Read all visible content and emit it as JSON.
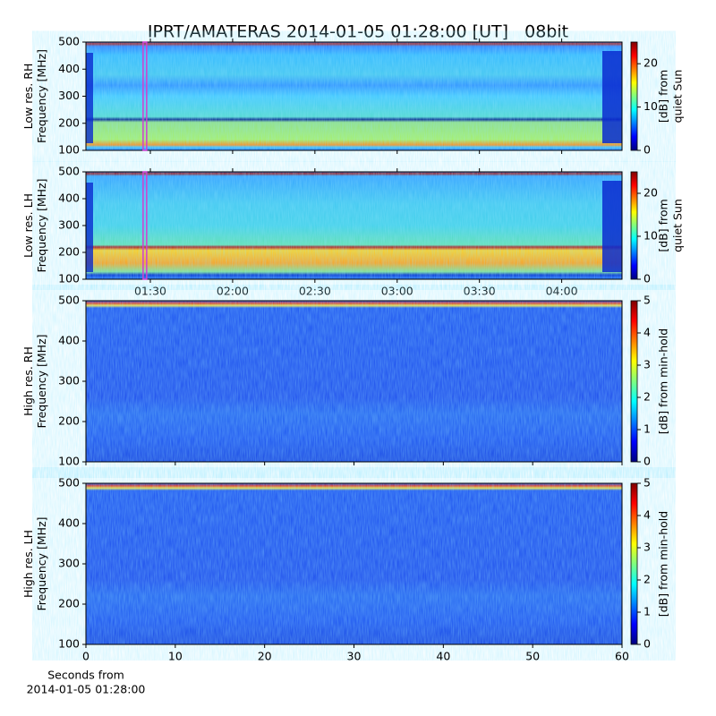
{
  "chart_data": [
    {
      "type": "spectrogram",
      "title": "IPRT/AMATERAS 2014-01-05 01:28:00 [UT]   08bit",
      "ylabel": [
        "Low res. RH",
        "Frequency [MHz]"
      ],
      "ylim": [
        100,
        500
      ],
      "yticks": [
        100,
        200,
        300,
        400,
        500
      ],
      "clim": [
        0,
        25
      ],
      "cticks": [
        0,
        10,
        20
      ],
      "clabel": [
        "[dB] from",
        "quiet Sun"
      ],
      "colormap": "jet",
      "marker": 88,
      "marker_color": "#d040d0"
    },
    {
      "type": "spectrogram",
      "ylabel": [
        "Low res. LH",
        "Frequency [MHz]"
      ],
      "ylim": [
        100,
        500
      ],
      "yticks": [
        100,
        200,
        300,
        400,
        500
      ],
      "xlim": [
        66.5,
        262
      ],
      "xticks": [
        {
          "value": 90,
          "label": "01:30"
        },
        {
          "value": 120,
          "label": "02:00"
        },
        {
          "value": 150,
          "label": "02:30"
        },
        {
          "value": 180,
          "label": "03:00"
        },
        {
          "value": 210,
          "label": "03:30"
        },
        {
          "value": 240,
          "label": "04:00"
        }
      ],
      "clim": [
        0,
        25
      ],
      "cticks": [
        0,
        10,
        20
      ],
      "clabel": [
        "[dB] from",
        "quiet Sun"
      ],
      "colormap": "jet",
      "marker": 88,
      "marker_color": "#d040d0"
    },
    {
      "type": "spectrogram",
      "ylabel": [
        "High res. RH",
        "Frequency [MHz]"
      ],
      "ylim": [
        100,
        500
      ],
      "yticks": [
        100,
        200,
        300,
        400,
        500
      ],
      "clim": [
        0,
        5
      ],
      "cticks": [
        0,
        1,
        2,
        3,
        4,
        5
      ],
      "clabel": [
        "[dB] from min-hold"
      ],
      "colormap": "jet"
    },
    {
      "type": "spectrogram",
      "ylabel": [
        "High res. LH",
        "Frequency [MHz]"
      ],
      "ylim": [
        100,
        500
      ],
      "yticks": [
        100,
        200,
        300,
        400,
        500
      ],
      "xlim": [
        0,
        60
      ],
      "xticks": [
        0,
        10,
        20,
        30,
        40,
        50,
        60
      ],
      "xlabel": [
        "Seconds from",
        "2014-01-05 01:28:00"
      ],
      "clim": [
        0,
        5
      ],
      "cticks": [
        0,
        1,
        2,
        3,
        4,
        5
      ],
      "clabel": [
        "[dB] from min-hold"
      ],
      "colormap": "jet"
    }
  ]
}
